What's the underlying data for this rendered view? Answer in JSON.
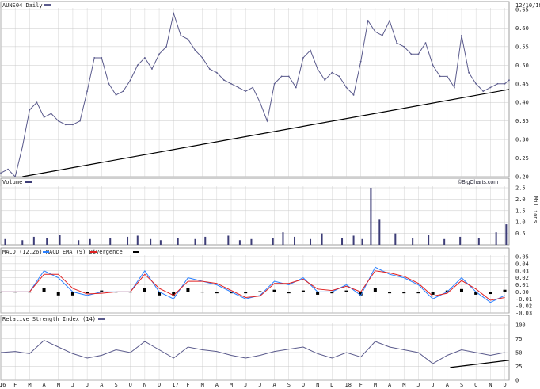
{
  "header": {
    "symbol_label": "AUNS04 Daily",
    "date": "12/10/18"
  },
  "watermark": "©BigCharts.com",
  "months": [
    "16",
    "F",
    "M",
    "A",
    "M",
    "J",
    "J",
    "A",
    "S",
    "O",
    "N",
    "D",
    "17",
    "F",
    "M",
    "A",
    "M",
    "J",
    "J",
    "A",
    "S",
    "O",
    "N",
    "D",
    "18",
    "F",
    "M",
    "A",
    "M",
    "J",
    "J",
    "A",
    "S",
    "O",
    "N",
    "D"
  ],
  "colors": {
    "price": "#5a5a8c",
    "grid": "#c8c8c8",
    "volume": "#3d3d77",
    "macd": "#2a80ff",
    "ema": "#e02020",
    "divergence": "#000000",
    "trend": "#000000"
  },
  "chart_data": [
    {
      "type": "line",
      "title": "AUNS04 Daily",
      "date": "12/10/18",
      "ylim": [
        0.2,
        0.65
      ],
      "yticks": [
        "0.65",
        "0.60",
        "0.55",
        "0.50",
        "0.45",
        "0.40",
        "0.35",
        "0.30",
        "0.25",
        "0.20"
      ],
      "ytick_values": [
        0.65,
        0.6,
        0.55,
        0.5,
        0.45,
        0.4,
        0.35,
        0.3,
        0.25,
        0.2
      ],
      "x": [
        0,
        0.5,
        1,
        1.5,
        2,
        2.5,
        3,
        3.5,
        4,
        4.5,
        5,
        5.5,
        6,
        6.5,
        7,
        7.5,
        8,
        8.5,
        9,
        9.5,
        10,
        10.5,
        11,
        11.5,
        12,
        12.5,
        13,
        13.5,
        14,
        14.5,
        15,
        15.5,
        16,
        16.5,
        17,
        17.5,
        18,
        18.5,
        19,
        19.5,
        20,
        20.5,
        21,
        21.5,
        22,
        22.5,
        23,
        23.5,
        24,
        24.5,
        25,
        25.5,
        26,
        26.5,
        27,
        27.5,
        28,
        28.5,
        29,
        29.5,
        30,
        30.5,
        31,
        31.5,
        32,
        32.5,
        33,
        33.5,
        34,
        34.5,
        35,
        35.3
      ],
      "values": [
        0.21,
        0.22,
        0.2,
        0.28,
        0.38,
        0.4,
        0.36,
        0.37,
        0.35,
        0.34,
        0.34,
        0.35,
        0.43,
        0.52,
        0.52,
        0.45,
        0.42,
        0.43,
        0.46,
        0.5,
        0.52,
        0.49,
        0.53,
        0.55,
        0.64,
        0.58,
        0.57,
        0.54,
        0.52,
        0.49,
        0.48,
        0.46,
        0.45,
        0.44,
        0.43,
        0.44,
        0.4,
        0.35,
        0.45,
        0.47,
        0.47,
        0.44,
        0.52,
        0.54,
        0.49,
        0.46,
        0.48,
        0.47,
        0.44,
        0.42,
        0.51,
        0.62,
        0.59,
        0.58,
        0.62,
        0.56,
        0.55,
        0.53,
        0.53,
        0.56,
        0.5,
        0.47,
        0.47,
        0.44,
        0.58,
        0.48,
        0.45,
        0.43,
        0.44,
        0.45,
        0.45,
        0.46
      ],
      "trendline": [
        [
          1.5,
          0.2
        ],
        [
          35.3,
          0.435
        ]
      ],
      "series": [
        {
          "name": "AUNS04"
        }
      ]
    },
    {
      "type": "bar",
      "title": "Volume",
      "ylabel": "Millions",
      "ylim": [
        0,
        2.5
      ],
      "yticks": [
        "2.5",
        "2.0",
        "1.5",
        "1.0",
        "0.5"
      ],
      "ytick_values": [
        2.5,
        2.0,
        1.5,
        1.0,
        0.5
      ],
      "x": [
        0.3,
        1.5,
        2.3,
        3.2,
        4.1,
        5.4,
        6.2,
        7.6,
        8.8,
        9.5,
        10.4,
        11.1,
        12.3,
        13.5,
        14.2,
        15.8,
        16.6,
        17.4,
        18.9,
        19.6,
        20.4,
        21.5,
        22.3,
        23.7,
        24.5,
        25.1,
        25.7,
        26.3,
        27.4,
        28.6,
        29.7,
        30.8,
        31.9,
        33.2,
        34.4,
        35.1
      ],
      "values": [
        0.25,
        0.2,
        0.35,
        0.3,
        0.45,
        0.2,
        0.25,
        0.3,
        0.35,
        0.4,
        0.25,
        0.2,
        0.3,
        0.25,
        0.35,
        0.4,
        0.2,
        0.25,
        0.3,
        0.55,
        0.35,
        0.25,
        0.5,
        0.3,
        0.4,
        0.25,
        2.5,
        1.1,
        0.5,
        0.3,
        0.45,
        0.25,
        0.35,
        0.3,
        0.55,
        0.9
      ]
    },
    {
      "type": "line",
      "title": "MACD (12,26) MACD EMA (9) Divergence",
      "ylim": [
        -0.03,
        0.05
      ],
      "yticks": [
        "0.05",
        "0.04",
        "0.03",
        "0.02",
        "0.01",
        "0.00",
        "-0.01",
        "-0.02",
        "-0.03"
      ],
      "ytick_values": [
        0.05,
        0.04,
        0.03,
        0.02,
        0.01,
        0.0,
        -0.01,
        -0.02,
        -0.03
      ],
      "x": [
        0,
        1,
        2,
        3,
        4,
        5,
        6,
        7,
        8,
        9,
        10,
        11,
        12,
        13,
        14,
        15,
        16,
        17,
        18,
        19,
        20,
        21,
        22,
        23,
        24,
        25,
        26,
        27,
        28,
        29,
        30,
        31,
        32,
        33,
        34,
        35
      ],
      "series": [
        {
          "name": "MACD",
          "values": [
            0.0,
            0.0,
            0.0,
            0.03,
            0.02,
            0.0,
            -0.005,
            0.0,
            0.0,
            0.0,
            0.03,
            0.0,
            -0.01,
            0.02,
            0.015,
            0.01,
            0.0,
            -0.01,
            -0.005,
            0.015,
            0.01,
            0.02,
            0.0,
            0.0,
            0.01,
            -0.005,
            0.035,
            0.025,
            0.02,
            0.01,
            -0.01,
            0.0,
            0.02,
            0.0,
            -0.015,
            -0.005
          ]
        },
        {
          "name": "MACD EMA (9)",
          "values": [
            0.0,
            0.0,
            0.0,
            0.025,
            0.025,
            0.005,
            -0.003,
            -0.002,
            0.0,
            0.0,
            0.025,
            0.005,
            -0.005,
            0.015,
            0.015,
            0.012,
            0.002,
            -0.008,
            -0.006,
            0.012,
            0.012,
            0.018,
            0.004,
            0.002,
            0.008,
            0.0,
            0.03,
            0.027,
            0.022,
            0.012,
            -0.006,
            -0.002,
            0.016,
            0.004,
            -0.012,
            -0.008
          ]
        },
        {
          "name": "Divergence",
          "values": [
            0.0,
            0.0,
            0.0,
            0.005,
            -0.005,
            -0.005,
            -0.002,
            0.002,
            0.0,
            0.0,
            0.005,
            -0.005,
            -0.005,
            0.005,
            0.0,
            -0.002,
            -0.002,
            -0.002,
            0.001,
            0.003,
            -0.002,
            0.002,
            -0.004,
            -0.002,
            0.002,
            -0.005,
            0.005,
            -0.002,
            -0.002,
            -0.002,
            -0.004,
            0.002,
            0.004,
            -0.004,
            -0.003,
            0.003
          ]
        }
      ]
    },
    {
      "type": "line",
      "title": "Relative Strength Index (14)",
      "ylim": [
        0,
        100
      ],
      "yticks": [
        "100",
        "75",
        "50",
        "25",
        "0"
      ],
      "ytick_values": [
        100,
        75,
        50,
        25,
        0
      ],
      "x": [
        0,
        1,
        2,
        3,
        4,
        5,
        6,
        7,
        8,
        9,
        10,
        11,
        12,
        13,
        14,
        15,
        16,
        17,
        18,
        19,
        20,
        21,
        22,
        23,
        24,
        25,
        26,
        27,
        28,
        29,
        30,
        31,
        32,
        33,
        34,
        35
      ],
      "values": [
        50,
        52,
        48,
        72,
        60,
        48,
        40,
        45,
        55,
        50,
        70,
        55,
        40,
        60,
        55,
        52,
        45,
        40,
        45,
        52,
        56,
        60,
        48,
        40,
        50,
        42,
        70,
        60,
        55,
        50,
        30,
        45,
        55,
        50,
        45,
        50
      ],
      "trendline": [
        [
          31.2,
          23
        ],
        [
          35.3,
          36
        ]
      ],
      "series": [
        {
          "name": "RSI (14)"
        }
      ]
    }
  ]
}
